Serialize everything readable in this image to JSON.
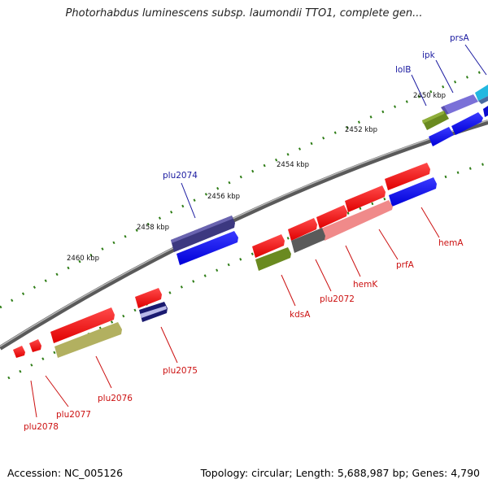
{
  "title": "Photorhabdus luminescens subsp. laumondii TTO1, complete gen...",
  "footer": {
    "accession": "Accession: NC_005126",
    "stats": "Topology: circular; Length: 5,688,987 bp; Genes: 4,790"
  },
  "colors": {
    "backbone": "#8a8a8a",
    "tick": "#2e7d16",
    "forward_label": "#1a1aa0",
    "reverse_label": "#cc1111"
  },
  "ruler": [
    "2450 kbp",
    "2452 kbp",
    "2454 kbp",
    "2456 kbp",
    "2458 kbp",
    "2460 kbp"
  ],
  "genes": [
    {
      "label": "prsA",
      "strand": "forward"
    },
    {
      "label": "ipk",
      "strand": "forward"
    },
    {
      "label": "lolB",
      "strand": "forward"
    },
    {
      "label": "plu2074",
      "strand": "forward"
    },
    {
      "label": "hemA",
      "strand": "reverse"
    },
    {
      "label": "prfA",
      "strand": "reverse"
    },
    {
      "label": "hemK",
      "strand": "reverse"
    },
    {
      "label": "plu2072",
      "strand": "reverse"
    },
    {
      "label": "kdsA",
      "strand": "reverse"
    },
    {
      "label": "plu2075",
      "strand": "reverse"
    },
    {
      "label": "plu2076",
      "strand": "reverse"
    },
    {
      "label": "plu2077",
      "strand": "reverse"
    },
    {
      "label": "plu2078",
      "strand": "reverse"
    }
  ]
}
